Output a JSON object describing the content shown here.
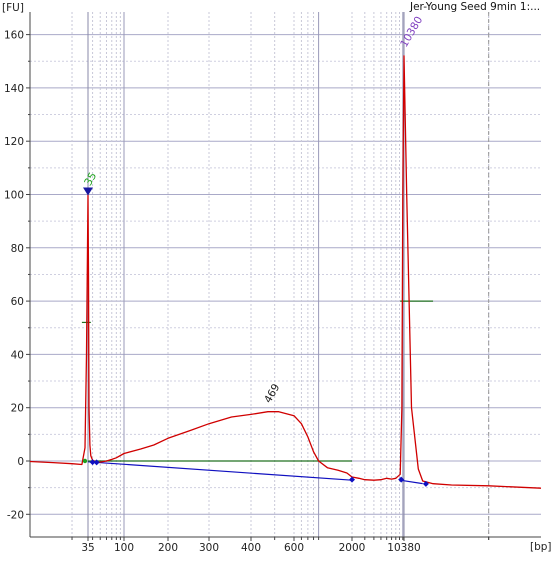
{
  "chart_data": {
    "type": "line",
    "title": "Jer-Young Seed 9min 1:...",
    "ylabel": "[FU]",
    "xlabel": "[bp]",
    "ylim": [
      -27,
      168
    ],
    "y_ticks": [
      -20,
      0,
      20,
      40,
      60,
      80,
      100,
      120,
      140,
      160
    ],
    "x_scale": "log",
    "x_range_bp": [
      20,
      30000
    ],
    "x_tick_labels": [
      {
        "bp": 35,
        "label": "35"
      },
      {
        "bp": 100,
        "label": "100"
      },
      {
        "bp": 200,
        "label": "200"
      },
      {
        "bp": 300,
        "label": "300"
      },
      {
        "bp": 400,
        "label": "400"
      },
      {
        "bp": 600,
        "label": "600"
      },
      {
        "bp": 2000,
        "label": "2000"
      },
      {
        "bp": 10380,
        "label": "10380"
      }
    ],
    "grid": true,
    "series": [
      {
        "color": "#d00000",
        "points": [
          [
            20,
            -0.2
          ],
          [
            25,
            -0.6
          ],
          [
            30,
            -1.0
          ],
          [
            33,
            -1.3
          ],
          [
            34,
            5
          ],
          [
            34.5,
            40
          ],
          [
            35,
            100
          ],
          [
            35.5,
            70
          ],
          [
            36,
            20
          ],
          [
            37,
            6
          ],
          [
            38,
            2
          ],
          [
            40,
            0.3
          ],
          [
            45,
            -0.5
          ],
          [
            50,
            -0.4
          ],
          [
            60,
            0
          ],
          [
            70,
            0.6
          ],
          [
            80,
            1.2
          ],
          [
            100,
            2.8
          ],
          [
            130,
            4.5
          ],
          [
            160,
            6
          ],
          [
            200,
            8.5
          ],
          [
            250,
            11.5
          ],
          [
            300,
            14
          ],
          [
            350,
            16.5
          ],
          [
            400,
            17.5
          ],
          [
            469,
            18.5
          ],
          [
            520,
            18.5
          ],
          [
            600,
            17
          ],
          [
            700,
            14
          ],
          [
            800,
            9
          ],
          [
            900,
            3.5
          ],
          [
            1000,
            0
          ],
          [
            1200,
            -2.5
          ],
          [
            1500,
            -3.5
          ],
          [
            1800,
            -4.5
          ],
          [
            2000,
            -6
          ],
          [
            2500,
            -6.5
          ],
          [
            3000,
            -7
          ],
          [
            4000,
            -7.2
          ],
          [
            5000,
            -7
          ],
          [
            6000,
            -6.5
          ],
          [
            7000,
            -6.8
          ],
          [
            8000,
            -6.5
          ],
          [
            9200,
            -5
          ],
          [
            9700,
            20
          ],
          [
            10000,
            100
          ],
          [
            10380,
            152
          ],
          [
            10600,
            100
          ],
          [
            11000,
            20
          ],
          [
            11600,
            -3
          ],
          [
            12000,
            -7.5
          ],
          [
            13000,
            -8.5
          ],
          [
            15000,
            -9
          ],
          [
            20000,
            -9.3
          ],
          [
            30000,
            -10.2
          ]
        ]
      }
    ],
    "baseline_segments": [
      {
        "color": "#1010c0",
        "from": [
          35,
          -0.3
        ],
        "to": [
          2000,
          -7.2
        ]
      },
      {
        "color": "#1010c0",
        "from": [
          9200,
          -7.2
        ],
        "to": [
          12000,
          -8.5
        ]
      },
      {
        "color": "#207020",
        "from": [
          35,
          0
        ],
        "to": [
          2000,
          0
        ]
      },
      {
        "color": "#207020",
        "from": [
          9200,
          60
        ],
        "to": [
          13000,
          60
        ]
      },
      {
        "color": "#207020",
        "from": [
          33,
          52
        ],
        "to": [
          38,
          52
        ]
      }
    ],
    "peak_labels": [
      {
        "text": "35",
        "color": "#20a020",
        "bp": 35,
        "fu": 100
      },
      {
        "text": "469",
        "color": "#202020",
        "bp": 469,
        "fu": 18.5
      },
      {
        "text": "10380",
        "color": "#8040c0",
        "bp": 10380,
        "fu": 152
      }
    ],
    "markers": [
      {
        "color": "#1010c0",
        "bp": 40,
        "fu": -0.4
      },
      {
        "color": "#1010c0",
        "bp": 45,
        "fu": -0.5
      },
      {
        "color": "#1010c0",
        "bp": 2000,
        "fu": -7
      },
      {
        "color": "#1010c0",
        "bp": 9500,
        "fu": -7
      },
      {
        "color": "#1010c0",
        "bp": 12300,
        "fu": -8.6
      }
    ]
  }
}
